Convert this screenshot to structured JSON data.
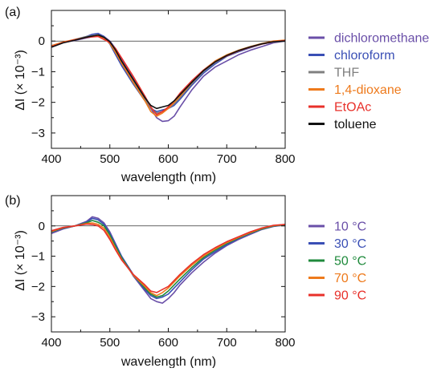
{
  "chart_data": [
    {
      "panel_label": "(a)",
      "type": "line",
      "xlabel": "wavelength (nm)",
      "ylabel": "ΔI (× 10⁻³)",
      "xlim": [
        400,
        800
      ],
      "ylim": [
        -3.5,
        1.0
      ],
      "xticks": [
        "400",
        "500",
        "600",
        "700",
        "800"
      ],
      "yticks": [
        "0",
        "−1",
        "−2",
        "−3"
      ],
      "ytick_values": [
        0,
        -1,
        -2,
        -3
      ],
      "zero_line": true,
      "legend_position": "right",
      "series": [
        {
          "name": "dichloromethane",
          "color": "#6a4fa8",
          "x": [
            400,
            420,
            440,
            460,
            480,
            490,
            500,
            510,
            520,
            540,
            560,
            570,
            580,
            590,
            600,
            610,
            620,
            640,
            660,
            680,
            700,
            720,
            740,
            760,
            780,
            800
          ],
          "y": [
            -0.15,
            -0.05,
            0.02,
            0.1,
            0.18,
            0.15,
            0.0,
            -0.25,
            -0.6,
            -1.2,
            -1.8,
            -2.2,
            -2.5,
            -2.62,
            -2.6,
            -2.45,
            -2.15,
            -1.6,
            -1.15,
            -0.85,
            -0.65,
            -0.45,
            -0.3,
            -0.18,
            -0.06,
            0.0
          ]
        },
        {
          "name": "chloroform",
          "color": "#3a4fb5",
          "x": [
            400,
            420,
            440,
            460,
            470,
            480,
            490,
            500,
            510,
            520,
            540,
            560,
            570,
            580,
            590,
            600,
            610,
            620,
            640,
            660,
            680,
            700,
            720,
            740,
            760,
            780,
            800
          ],
          "y": [
            -0.2,
            -0.05,
            0.05,
            0.15,
            0.22,
            0.25,
            0.15,
            -0.1,
            -0.45,
            -0.8,
            -1.4,
            -1.95,
            -2.2,
            -2.3,
            -2.25,
            -2.2,
            -2.1,
            -1.9,
            -1.45,
            -1.05,
            -0.75,
            -0.5,
            -0.35,
            -0.22,
            -0.1,
            -0.03,
            0.0
          ]
        },
        {
          "name": "THF",
          "color": "#808080",
          "x": [
            400,
            420,
            440,
            460,
            480,
            490,
            500,
            510,
            520,
            540,
            560,
            570,
            580,
            590,
            600,
            610,
            620,
            640,
            660,
            680,
            700,
            720,
            740,
            760,
            780,
            800
          ],
          "y": [
            -0.2,
            -0.05,
            0.05,
            0.15,
            0.2,
            0.12,
            -0.05,
            -0.35,
            -0.7,
            -1.3,
            -1.9,
            -2.2,
            -2.35,
            -2.3,
            -2.2,
            -2.05,
            -1.85,
            -1.4,
            -1.0,
            -0.7,
            -0.48,
            -0.32,
            -0.2,
            -0.1,
            -0.03,
            0.0
          ]
        },
        {
          "name": "1,4-dioxane",
          "color": "#ee7a1c",
          "x": [
            400,
            420,
            440,
            460,
            480,
            490,
            500,
            510,
            520,
            540,
            560,
            570,
            580,
            590,
            600,
            610,
            620,
            640,
            660,
            680,
            700,
            720,
            740,
            760,
            780,
            800
          ],
          "y": [
            -0.15,
            -0.03,
            0.05,
            0.12,
            0.18,
            0.1,
            -0.08,
            -0.38,
            -0.72,
            -1.35,
            -1.95,
            -2.3,
            -2.45,
            -2.35,
            -2.2,
            -2.0,
            -1.8,
            -1.35,
            -0.95,
            -0.65,
            -0.45,
            -0.3,
            -0.18,
            -0.08,
            0.0,
            0.03
          ]
        },
        {
          "name": "EtOAc",
          "color": "#e8302a",
          "x": [
            400,
            420,
            440,
            460,
            480,
            490,
            500,
            510,
            520,
            540,
            560,
            570,
            580,
            590,
            600,
            610,
            620,
            640,
            660,
            680,
            700,
            720,
            740,
            760,
            780,
            800
          ],
          "y": [
            -0.18,
            -0.05,
            0.04,
            0.12,
            0.15,
            0.05,
            -0.05,
            -0.25,
            -0.55,
            -1.15,
            -1.8,
            -2.15,
            -2.4,
            -2.3,
            -2.15,
            -1.95,
            -1.7,
            -1.3,
            -0.95,
            -0.68,
            -0.48,
            -0.32,
            -0.2,
            -0.1,
            -0.02,
            0.02
          ]
        },
        {
          "name": "toluene",
          "color": "#111111",
          "x": [
            400,
            420,
            440,
            460,
            480,
            490,
            500,
            510,
            520,
            540,
            560,
            570,
            580,
            590,
            600,
            610,
            620,
            640,
            660,
            680,
            700,
            720,
            740,
            760,
            780,
            800
          ],
          "y": [
            -0.2,
            -0.06,
            0.03,
            0.13,
            0.2,
            0.12,
            -0.02,
            -0.3,
            -0.65,
            -1.25,
            -1.85,
            -2.1,
            -2.2,
            -2.15,
            -2.1,
            -1.95,
            -1.75,
            -1.35,
            -0.97,
            -0.68,
            -0.47,
            -0.31,
            -0.19,
            -0.09,
            -0.02,
            0.0
          ]
        }
      ]
    },
    {
      "panel_label": "(b)",
      "type": "line",
      "xlabel": "wavelength (nm)",
      "ylabel": "ΔI (× 10⁻³)",
      "xlim": [
        400,
        800
      ],
      "ylim": [
        -3.5,
        1.0
      ],
      "xticks": [
        "400",
        "500",
        "600",
        "700",
        "800"
      ],
      "yticks": [
        "0",
        "−1",
        "−2",
        "−3"
      ],
      "ytick_values": [
        0,
        -1,
        -2,
        -3
      ],
      "zero_line": true,
      "legend_position": "right",
      "series": [
        {
          "name": "10 °C",
          "color": "#6a4fa8",
          "x": [
            400,
            420,
            440,
            460,
            470,
            480,
            490,
            500,
            510,
            520,
            540,
            560,
            570,
            580,
            590,
            600,
            610,
            620,
            640,
            660,
            680,
            700,
            720,
            740,
            760,
            780,
            800
          ],
          "y": [
            -0.25,
            -0.1,
            0.0,
            0.15,
            0.3,
            0.25,
            0.1,
            -0.2,
            -0.6,
            -1.0,
            -1.65,
            -2.15,
            -2.4,
            -2.5,
            -2.55,
            -2.4,
            -2.2,
            -1.95,
            -1.55,
            -1.2,
            -0.9,
            -0.65,
            -0.45,
            -0.28,
            -0.12,
            -0.02,
            0.03
          ]
        },
        {
          "name": "30 °C",
          "color": "#3a4fb5",
          "x": [
            400,
            420,
            440,
            460,
            470,
            480,
            490,
            500,
            510,
            520,
            540,
            560,
            570,
            580,
            590,
            600,
            610,
            620,
            640,
            660,
            680,
            700,
            720,
            740,
            760,
            780,
            800
          ],
          "y": [
            -0.2,
            -0.08,
            0.0,
            0.12,
            0.25,
            0.2,
            0.05,
            -0.25,
            -0.62,
            -1.0,
            -1.6,
            -2.1,
            -2.3,
            -2.4,
            -2.35,
            -2.25,
            -2.05,
            -1.85,
            -1.45,
            -1.1,
            -0.85,
            -0.62,
            -0.42,
            -0.25,
            -0.1,
            -0.01,
            0.04
          ]
        },
        {
          "name": "50 °C",
          "color": "#1f8a3c",
          "x": [
            400,
            420,
            440,
            460,
            470,
            480,
            490,
            500,
            510,
            520,
            540,
            560,
            570,
            580,
            590,
            600,
            610,
            620,
            640,
            660,
            680,
            700,
            720,
            740,
            760,
            780,
            800
          ],
          "y": [
            -0.2,
            -0.07,
            0.0,
            0.1,
            0.18,
            0.12,
            0.0,
            -0.3,
            -0.68,
            -1.05,
            -1.62,
            -2.05,
            -2.25,
            -2.35,
            -2.3,
            -2.15,
            -1.95,
            -1.75,
            -1.38,
            -1.05,
            -0.8,
            -0.58,
            -0.4,
            -0.24,
            -0.1,
            0.0,
            0.04
          ]
        },
        {
          "name": "70 °C",
          "color": "#ee7a1c",
          "x": [
            400,
            420,
            440,
            460,
            470,
            480,
            490,
            500,
            510,
            520,
            540,
            560,
            570,
            580,
            590,
            600,
            610,
            620,
            640,
            660,
            680,
            700,
            720,
            740,
            760,
            780,
            800
          ],
          "y": [
            -0.18,
            -0.06,
            0.0,
            0.08,
            0.1,
            0.05,
            -0.08,
            -0.38,
            -0.75,
            -1.1,
            -1.62,
            -2.0,
            -2.2,
            -2.3,
            -2.2,
            -2.05,
            -1.85,
            -1.65,
            -1.3,
            -1.0,
            -0.76,
            -0.55,
            -0.38,
            -0.22,
            -0.08,
            0.01,
            0.05
          ]
        },
        {
          "name": "90 °C",
          "color": "#e8302a",
          "x": [
            400,
            420,
            440,
            460,
            470,
            480,
            490,
            500,
            510,
            520,
            540,
            560,
            570,
            580,
            590,
            600,
            610,
            620,
            640,
            660,
            680,
            700,
            720,
            740,
            760,
            780,
            800
          ],
          "y": [
            -0.16,
            -0.05,
            0.0,
            0.06,
            0.05,
            0.0,
            -0.15,
            -0.45,
            -0.8,
            -1.12,
            -1.6,
            -1.95,
            -2.15,
            -2.2,
            -2.1,
            -2.0,
            -1.8,
            -1.6,
            -1.25,
            -0.95,
            -0.72,
            -0.52,
            -0.36,
            -0.2,
            -0.07,
            0.02,
            0.05
          ]
        }
      ]
    }
  ]
}
